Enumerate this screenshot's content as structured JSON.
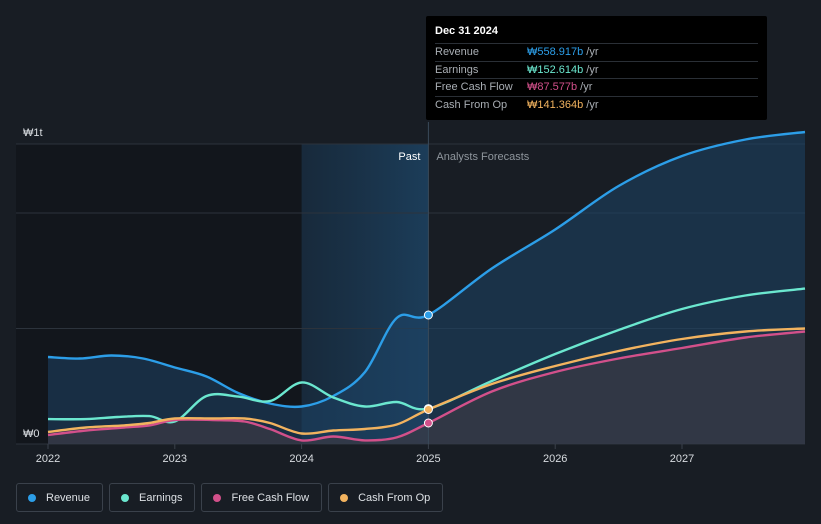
{
  "tooltip": {
    "date": "Dec 31 2024",
    "rows": [
      {
        "name": "Revenue",
        "value": "₩558.917b",
        "unit": "/yr",
        "color": "#2c9ee8"
      },
      {
        "name": "Earnings",
        "value": "₩152.614b",
        "unit": "/yr",
        "color": "#6be7cf"
      },
      {
        "name": "Free Cash Flow",
        "value": "₩87.577b",
        "unit": "/yr",
        "color": "#d2508a"
      },
      {
        "name": "Cash From Op",
        "value": "₩141.364b",
        "unit": "/yr",
        "color": "#f2b35f"
      }
    ]
  },
  "legend": [
    {
      "name": "Revenue",
      "color": "#2c9ee8"
    },
    {
      "name": "Earnings",
      "color": "#6be7cf"
    },
    {
      "name": "Free Cash Flow",
      "color": "#d2508a"
    },
    {
      "name": "Cash From Op",
      "color": "#f2b35f"
    }
  ],
  "chart_data": {
    "type": "line",
    "y_labels": {
      "top": "₩1t",
      "bottom": "₩0"
    },
    "ylim": [
      0,
      1000
    ],
    "xlim": [
      2022.0,
      2027.97
    ],
    "x_ticks": [
      {
        "label": "2022",
        "value": 2022
      },
      {
        "label": "2023",
        "value": 2023
      },
      {
        "label": "2024",
        "value": 2024
      },
      {
        "label": "2025",
        "value": 2025
      },
      {
        "label": "2026",
        "value": 2026
      },
      {
        "label": "2027",
        "value": 2027
      }
    ],
    "gridlines": [
      1000,
      770,
      385
    ],
    "regions": {
      "past_label": "Past",
      "forecast_label": "Analysts Forecasts",
      "divider_x": 2025.0,
      "highlight_start_x": 2024.0
    },
    "series": [
      {
        "name": "Revenue",
        "color": "#2c9ee8",
        "fill": true,
        "points": [
          [
            2022.0,
            290
          ],
          [
            2022.25,
            285
          ],
          [
            2022.5,
            295
          ],
          [
            2022.75,
            285
          ],
          [
            2023.0,
            255
          ],
          [
            2023.25,
            225
          ],
          [
            2023.5,
            170
          ],
          [
            2023.75,
            135
          ],
          [
            2024.0,
            125
          ],
          [
            2024.25,
            160
          ],
          [
            2024.5,
            240
          ],
          [
            2024.75,
            420
          ],
          [
            2025.0,
            430
          ],
          [
            2025.5,
            585
          ],
          [
            2026.0,
            715
          ],
          [
            2026.5,
            860
          ],
          [
            2027.0,
            960
          ],
          [
            2027.5,
            1015
          ],
          [
            2027.97,
            1040
          ]
        ],
        "marker_x": 2025.0
      },
      {
        "name": "Earnings",
        "color": "#6be7cf",
        "fill": false,
        "points": [
          [
            2022.0,
            83
          ],
          [
            2022.3,
            83
          ],
          [
            2022.55,
            90
          ],
          [
            2022.8,
            93
          ],
          [
            2023.0,
            75
          ],
          [
            2023.25,
            160
          ],
          [
            2023.5,
            158
          ],
          [
            2023.75,
            143
          ],
          [
            2024.0,
            205
          ],
          [
            2024.25,
            155
          ],
          [
            2024.5,
            125
          ],
          [
            2024.75,
            140
          ],
          [
            2025.0,
            118
          ],
          [
            2025.5,
            210
          ],
          [
            2026.0,
            300
          ],
          [
            2026.5,
            380
          ],
          [
            2027.0,
            450
          ],
          [
            2027.5,
            495
          ],
          [
            2027.97,
            518
          ]
        ]
      },
      {
        "name": "Free Cash Flow",
        "color": "#d2508a",
        "fill": true,
        "points": [
          [
            2022.0,
            30
          ],
          [
            2022.3,
            45
          ],
          [
            2022.6,
            55
          ],
          [
            2022.8,
            62
          ],
          [
            2023.0,
            80
          ],
          [
            2023.3,
            80
          ],
          [
            2023.55,
            75
          ],
          [
            2023.75,
            50
          ],
          [
            2024.0,
            12
          ],
          [
            2024.25,
            25
          ],
          [
            2024.5,
            12
          ],
          [
            2024.75,
            22
          ],
          [
            2025.0,
            70
          ],
          [
            2025.5,
            175
          ],
          [
            2026.0,
            240
          ],
          [
            2026.5,
            285
          ],
          [
            2027.0,
            320
          ],
          [
            2027.5,
            355
          ],
          [
            2027.97,
            375
          ]
        ]
      },
      {
        "name": "Cash From Op",
        "color": "#f2b35f",
        "fill": false,
        "points": [
          [
            2022.0,
            40
          ],
          [
            2022.3,
            55
          ],
          [
            2022.6,
            62
          ],
          [
            2022.8,
            70
          ],
          [
            2023.0,
            85
          ],
          [
            2023.3,
            85
          ],
          [
            2023.55,
            85
          ],
          [
            2023.75,
            70
          ],
          [
            2024.0,
            35
          ],
          [
            2024.25,
            45
          ],
          [
            2024.5,
            50
          ],
          [
            2024.75,
            65
          ],
          [
            2025.0,
            115
          ],
          [
            2025.5,
            200
          ],
          [
            2026.0,
            260
          ],
          [
            2026.5,
            310
          ],
          [
            2027.0,
            350
          ],
          [
            2027.5,
            375
          ],
          [
            2027.97,
            385
          ]
        ]
      }
    ]
  }
}
